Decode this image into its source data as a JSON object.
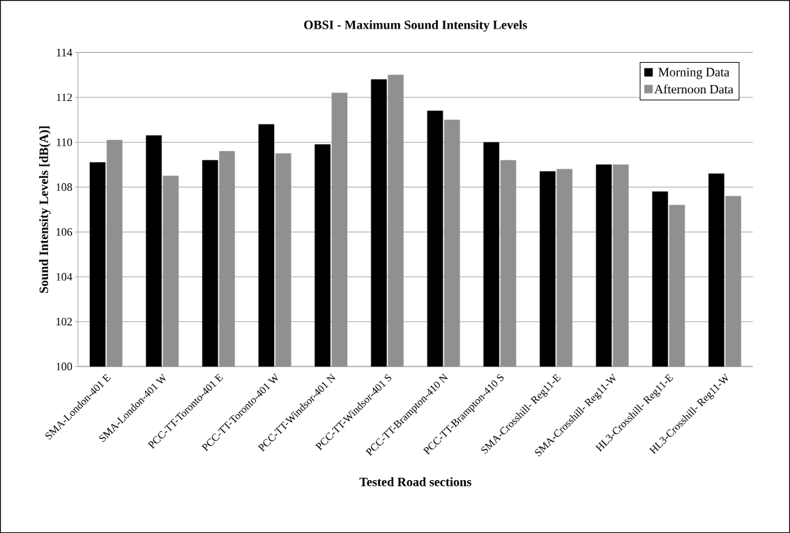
{
  "chart_data": {
    "type": "bar",
    "title": "OBSI - Maximum Sound Intensity Levels",
    "xlabel": "Tested Road sections",
    "ylabel": "Sound Intensity Levels [dB(A)]",
    "categories": [
      "SMA-London-401 E",
      "SMA-London-401 W",
      "PCC-TT-Toronto-401 E",
      "PCC-TT-Toronto-401 W",
      "PCC-TT-Windsor-401 N",
      "PCC-TT-Windsor-401 S",
      "PCC-TT-Brampton-410 N",
      "PCC-TT-Brampton-410 S",
      "SMA-Crosshill- Reg11-E",
      "SMA-Crosshill- Reg11-W",
      "HL3-Crosshill- Reg11-E",
      "HL3-Crosshill- Reg11-W"
    ],
    "series": [
      {
        "name": "Morning Data",
        "color": "#000000",
        "values": [
          109.1,
          110.3,
          109.2,
          110.8,
          109.9,
          112.8,
          111.4,
          110.0,
          108.7,
          109.0,
          107.8,
          108.6
        ]
      },
      {
        "name": "Afternoon Data",
        "color": "#909090",
        "values": [
          110.1,
          108.5,
          109.6,
          109.5,
          112.2,
          113.0,
          111.0,
          109.2,
          108.8,
          109.0,
          107.2,
          107.6
        ]
      }
    ],
    "ylim": [
      100,
      114
    ],
    "yticks": [
      100,
      102,
      104,
      106,
      108,
      110,
      112,
      114
    ],
    "grid": "y",
    "legend": "top right"
  }
}
